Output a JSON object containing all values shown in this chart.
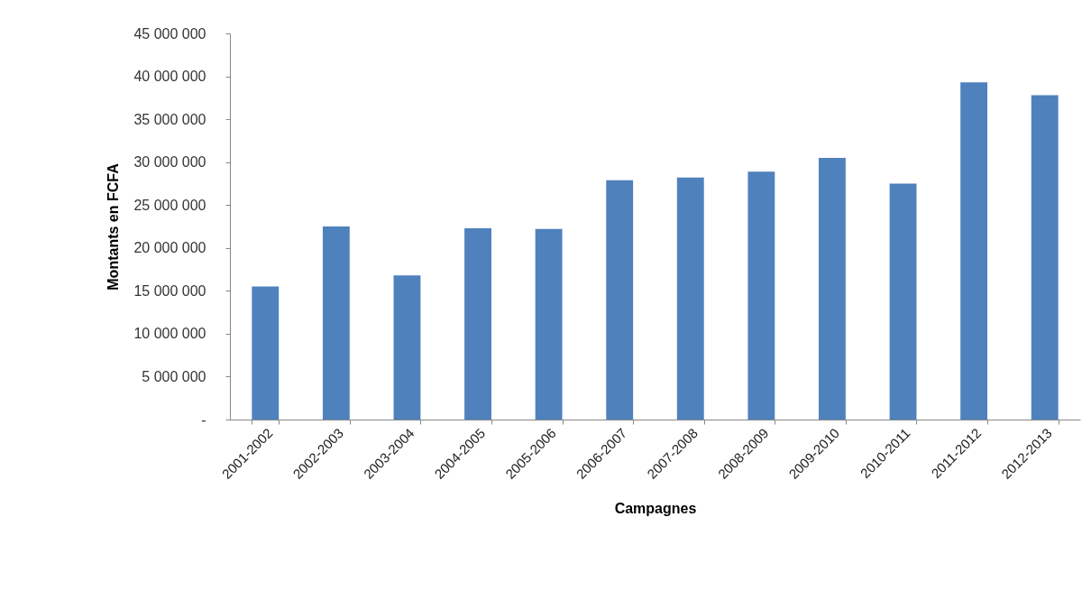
{
  "chart_data": {
    "type": "bar",
    "xlabel": "Campagnes",
    "ylabel": "Montants en  FCFA",
    "categories": [
      "2001-2002",
      "2002-2003",
      "2003-2004",
      "2004-2005",
      "2005-2006",
      "2006-2007",
      "2007-2008",
      "2008-2009",
      "2009-2010",
      "2010-2011",
      "2011-2012",
      "2012-2013"
    ],
    "values": [
      15500000,
      22500000,
      16800000,
      22300000,
      22200000,
      27900000,
      28200000,
      28900000,
      30500000,
      27500000,
      39300000,
      37800000
    ],
    "color": "#4f81bd",
    "ylim": [
      0,
      45000000
    ],
    "yticks": [
      {
        "value": 0,
        "label": "-"
      },
      {
        "value": 5000000,
        "label": "5 000 000"
      },
      {
        "value": 10000000,
        "label": "10 000 000"
      },
      {
        "value": 15000000,
        "label": "15 000 000"
      },
      {
        "value": 20000000,
        "label": "20 000 000"
      },
      {
        "value": 25000000,
        "label": "25 000 000"
      },
      {
        "value": 30000000,
        "label": "30 000 000"
      },
      {
        "value": 35000000,
        "label": "35 000 000"
      },
      {
        "value": 40000000,
        "label": "40 000 000"
      },
      {
        "value": 45000000,
        "label": "45 000 000"
      }
    ]
  }
}
